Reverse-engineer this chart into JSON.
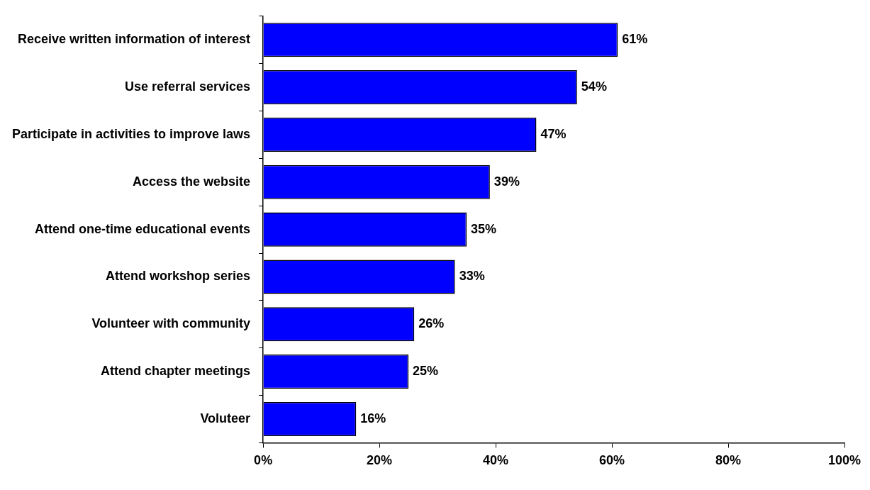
{
  "chart_data": {
    "type": "bar",
    "orientation": "horizontal",
    "categories": [
      "Receive written information of interest",
      "Use referral services",
      "Participate in activities to improve laws",
      "Access the website",
      "Attend one-time educational events",
      "Attend workshop series",
      "Volunteer with community",
      "Attend chapter meetings",
      "Voluteer"
    ],
    "values": [
      61,
      54,
      47,
      39,
      35,
      33,
      26,
      25,
      16
    ],
    "value_labels": [
      "61%",
      "54%",
      "47%",
      "39%",
      "35%",
      "33%",
      "26%",
      "25%",
      "16%"
    ],
    "color": "#0000ff",
    "xlim": [
      0,
      100
    ],
    "xticks": [
      {
        "value": 0,
        "label": "0%"
      },
      {
        "value": 20,
        "label": "20%"
      },
      {
        "value": 40,
        "label": "40%"
      },
      {
        "value": 60,
        "label": "60%"
      },
      {
        "value": 80,
        "label": "80%"
      },
      {
        "value": 100,
        "label": "100%"
      }
    ]
  }
}
